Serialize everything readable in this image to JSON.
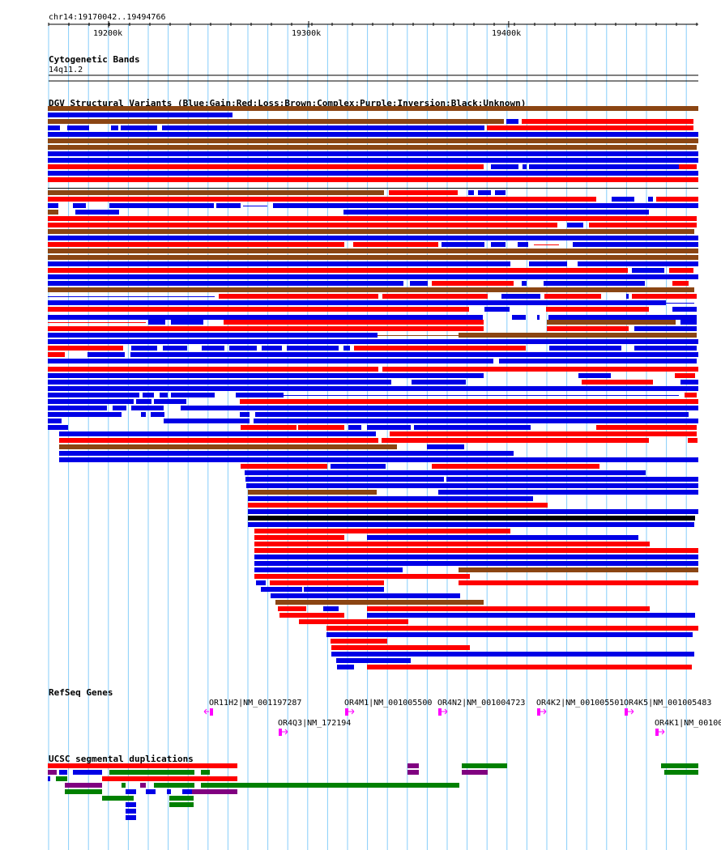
{
  "ruler": {
    "location": "chr14:19170042..19494766",
    "ticks": [
      {
        "pos": 19200000,
        "label": "19200k"
      },
      {
        "pos": 19300000,
        "label": "19300k"
      },
      {
        "pos": 19400000,
        "label": "19400k"
      }
    ],
    "start": 19170042,
    "end": 19494766
  },
  "tracks": {
    "cytoband": {
      "title": "Cytogenetic Bands",
      "band": "14q11.2"
    },
    "dgv": {
      "title": "DGV Structural Variants (Blue:Gain;Red:Loss;Brown:Complex;Purple:Inversion;Black:Unknown)"
    },
    "refseq": {
      "title": "RefSeq Genes"
    },
    "segdup": {
      "title": "UCSC segmental duplications"
    }
  },
  "genes": [
    {
      "label": "OR11H2|NM_001197287",
      "strand": "-"
    },
    {
      "label": "OR4Q3|NM_172194",
      "strand": "+"
    },
    {
      "label": "OR4M1|NM_001005500",
      "strand": "+"
    },
    {
      "label": "OR4N2|NM_001004723",
      "strand": "+"
    },
    {
      "label": "OR4K2|NM_001005501",
      "strand": "+"
    },
    {
      "label": "OR4K5|NM_001005483",
      "strand": "+"
    },
    {
      "label": "OR4K1|NM_00100",
      "strand": "+"
    }
  ],
  "colors": {
    "gain": "#0000e6",
    "loss": "#ff0000",
    "complex": "#8b4513",
    "inversion": "#800080",
    "unknown": "#000000",
    "grid": "#87cefa",
    "gene": "#ff00ff",
    "segdup_green": "#008000"
  }
}
